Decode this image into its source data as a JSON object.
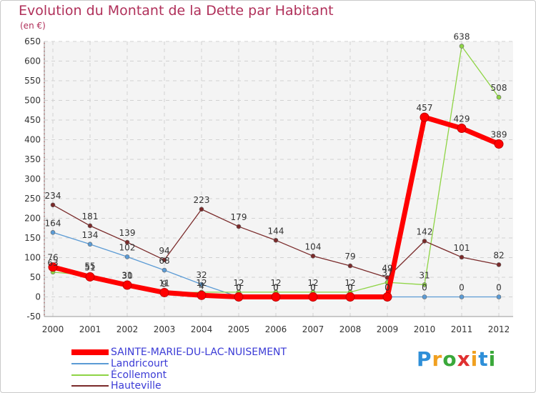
{
  "chart_data": {
    "type": "line",
    "title": "Evolution du Montant de la Dette par Habitant",
    "subtitle": "(en €)",
    "x": [
      "2000",
      "2001",
      "2002",
      "2003",
      "2004",
      "2005",
      "2006",
      "2007",
      "2008",
      "2009",
      "2010",
      "2011",
      "2012"
    ],
    "ylim": [
      -50,
      650
    ],
    "yticks": [
      "-50",
      "0",
      "50",
      "100",
      "150",
      "200",
      "250",
      "300",
      "350",
      "400",
      "450",
      "500",
      "550",
      "600",
      "650"
    ],
    "grid": true,
    "series": [
      {
        "name": "SAINTE-MARIE-DU-LAC-NUISEMENT",
        "color": "#ff0000",
        "values": [
          76,
          51,
          30,
          11,
          4,
          0,
          0,
          0,
          0,
          0,
          457,
          429,
          389
        ],
        "labels": [
          "76",
          "51",
          "30",
          "11",
          "4",
          "0",
          "0",
          "0",
          "0",
          "0",
          "457",
          "429",
          "389"
        ]
      },
      {
        "name": "Landricourt",
        "color": "#5b9bd5",
        "values": [
          164,
          134,
          102,
          68,
          32,
          0,
          0,
          0,
          0,
          0,
          0,
          0,
          0
        ],
        "labels": [
          "164",
          "134",
          "102",
          "68",
          "32",
          "0",
          "0",
          "0",
          "0",
          "0",
          "0",
          "0",
          "0"
        ]
      },
      {
        "name": "Écollemont",
        "color": "#8ed444",
        "values": [
          63,
          55,
          31,
          9,
          12,
          12,
          12,
          12,
          12,
          37,
          31,
          638,
          508
        ],
        "labels": [
          "63",
          "55",
          "31",
          "9",
          "12",
          "12",
          "12",
          "12",
          "12",
          "37",
          "31",
          "638",
          "508"
        ]
      },
      {
        "name": "Hauteville",
        "color": "#7a2a2a",
        "values": [
          234,
          181,
          139,
          94,
          223,
          179,
          144,
          104,
          79,
          49,
          142,
          101,
          82
        ],
        "labels": [
          "234",
          "181",
          "139",
          "94",
          "223",
          "179",
          "144",
          "104",
          "79",
          "49",
          "142",
          "101",
          "82"
        ]
      }
    ]
  },
  "legend": {
    "items": [
      {
        "label": "SAINTE-MARIE-DU-LAC-NUISEMENT",
        "color": "#ff0000"
      },
      {
        "label": "Landricourt",
        "color": "#5b9bd5"
      },
      {
        "label": "Écollemont",
        "color": "#8ed444"
      },
      {
        "label": "Hauteville",
        "color": "#7a2a2a"
      }
    ]
  },
  "logo": {
    "text": "Proxiti"
  }
}
